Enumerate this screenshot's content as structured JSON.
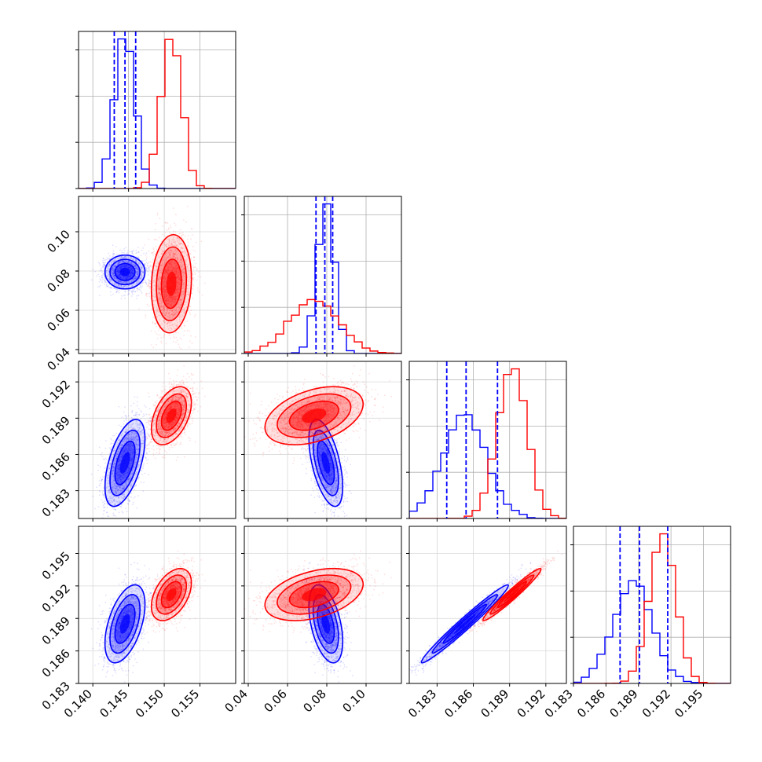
{
  "chart_data": {
    "type": "corner",
    "n_params": 4,
    "series": [
      {
        "color": "#0000ff",
        "means": [
          0.1445,
          0.0795,
          0.1853,
          0.1885
        ],
        "stds": [
          0.0014,
          0.0043,
          0.0018,
          0.0018
        ],
        "correlations": [
          [
            1,
            0,
            0.55,
            0.5
          ],
          [
            0,
            1,
            -0.55,
            -0.45
          ],
          [
            0.55,
            -0.55,
            1,
            0.98
          ],
          [
            0.5,
            -0.45,
            0.98,
            1
          ]
        ],
        "quantile_lines": [
          [
            0.143,
            0.1445,
            0.146
          ],
          [
            0.0745,
            0.079,
            0.083
          ],
          [
            0.1838,
            0.1854,
            0.188
          ],
          [
            0.1873,
            0.1891,
            0.1917
          ]
        ]
      },
      {
        "color": "#ff0000",
        "means": [
          0.151,
          0.0735,
          0.1892,
          0.1912
        ],
        "stds": [
          0.0014,
          0.0125,
          0.0012,
          0.0012
        ],
        "correlations": [
          [
            1,
            0.1,
            0.45,
            0.45
          ],
          [
            0.1,
            1,
            0.4,
            0.4
          ],
          [
            0.45,
            0.4,
            1,
            0.97
          ],
          [
            0.45,
            0.4,
            0.97,
            1
          ]
        ],
        "quantile_lines": null
      }
    ],
    "axis_ranges": [
      [
        0.138,
        0.16
      ],
      [
        0.038,
        0.118
      ],
      [
        0.1807,
        0.1937
      ],
      [
        0.183,
        0.1975
      ]
    ],
    "x_ticks": [
      [
        "0.140",
        "0.145",
        "0.150",
        "0.155"
      ],
      [
        "0.04",
        "0.06",
        "0.08",
        "0.10"
      ],
      [
        "0.183",
        "0.186",
        "0.189",
        "0.192"
      ],
      [
        "0.183",
        "0.186",
        "0.189",
        "0.192",
        "0.195"
      ]
    ],
    "y_ticks": [
      null,
      [
        "0.04",
        "0.06",
        "0.08",
        "0.10"
      ],
      [
        "0.183",
        "0.186",
        "0.189",
        "0.192"
      ],
      [
        "0.183",
        "0.186",
        "0.189",
        "0.192",
        "0.195"
      ]
    ],
    "histogram_bins": 20,
    "grid": true,
    "title": "",
    "legend": ""
  }
}
